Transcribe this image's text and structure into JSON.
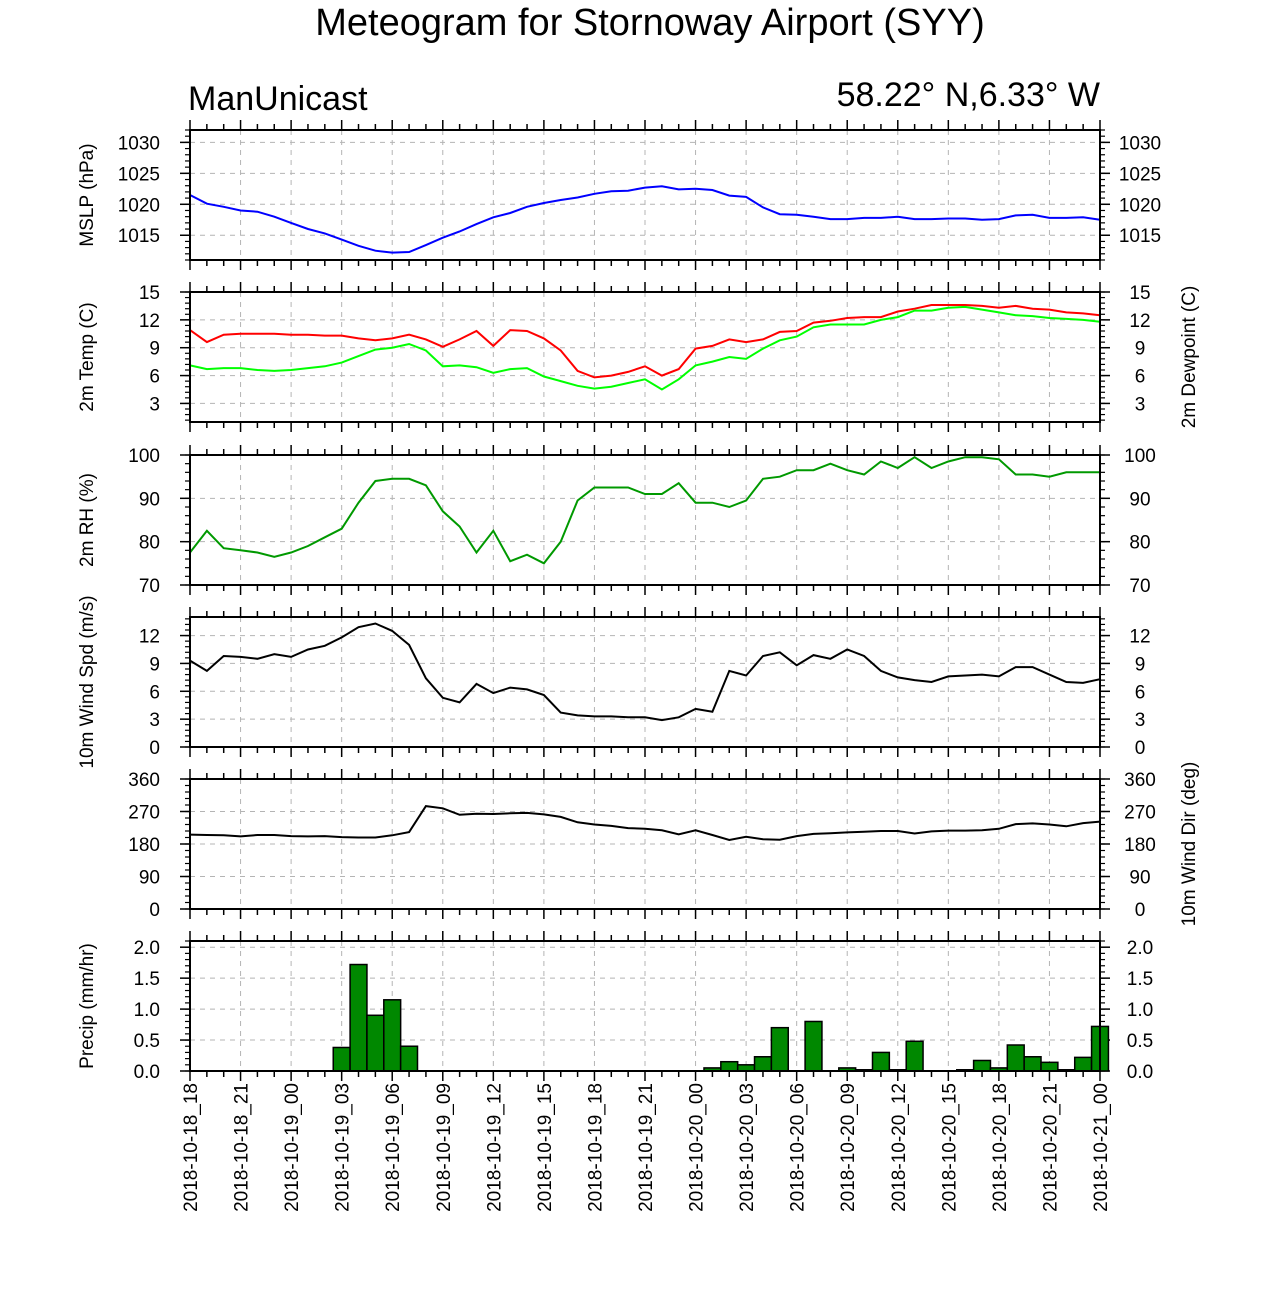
{
  "title": "Meteogram for Stornoway Airport (SYY)",
  "model": "ManUnicast",
  "location": "58.22° N,6.33° W",
  "colors": {
    "mslp": "#0000ff",
    "temp": "#ff0000",
    "dewpoint": "#00ff00",
    "rh": "#009900",
    "wind": "#000000",
    "precip": "#008800"
  },
  "time_labels": [
    "2018-10-18_18",
    "2018-10-18_21",
    "2018-10-19_00",
    "2018-10-19_03",
    "2018-10-19_06",
    "2018-10-19_09",
    "2018-10-19_12",
    "2018-10-19_15",
    "2018-10-19_18",
    "2018-10-19_21",
    "2018-10-20_00",
    "2018-10-20_03",
    "2018-10-20_06",
    "2018-10-20_09",
    "2018-10-20_12",
    "2018-10-20_15",
    "2018-10-20_18",
    "2018-10-20_21",
    "2018-10-21_00"
  ],
  "chart_data": [
    {
      "type": "line",
      "ylabel": "MSLP (hPa)",
      "yticks": [
        1015,
        1020,
        1025,
        1030
      ],
      "ylim": [
        1011,
        1032
      ],
      "grid": true,
      "series": [
        {
          "values": [
            1021.5,
            1020.1,
            1019.6,
            1019.0,
            1018.8,
            1018.0,
            1017.0,
            1016.0,
            1015.3,
            1014.3,
            1013.3,
            1012.5,
            1012.2,
            1012.3,
            1013.4,
            1014.6,
            1015.6,
            1016.8,
            1017.9,
            1018.6,
            1019.6,
            1020.2,
            1020.7,
            1021.1,
            1021.7,
            1022.1,
            1022.2,
            1022.7,
            1022.9,
            1022.4,
            1022.5,
            1022.3,
            1021.4,
            1021.2,
            1019.5,
            1018.4,
            1018.3,
            1018.0,
            1017.6,
            1017.6,
            1017.8,
            1017.8,
            1018.0,
            1017.6,
            1017.6,
            1017.7,
            1017.7,
            1017.5,
            1017.6,
            1018.2,
            1018.3,
            1017.8,
            1017.8,
            1017.9,
            1017.5
          ]
        }
      ]
    },
    {
      "type": "line",
      "ylabel": "2m Temp (C)",
      "y2label": "2m Dewpoint (C)",
      "yticks": [
        3,
        6,
        9,
        12,
        15
      ],
      "ylim": [
        1,
        15
      ],
      "grid": true,
      "series": [
        {
          "values": [
            10.9,
            9.6,
            10.4,
            10.5,
            10.5,
            10.5,
            10.4,
            10.4,
            10.3,
            10.3,
            10.0,
            9.8,
            10.0,
            10.4,
            9.9,
            9.1,
            9.9,
            10.8,
            9.2,
            10.9,
            10.8,
            10.0,
            8.7,
            6.5,
            5.8,
            6.0,
            6.4,
            7.0,
            6.0,
            6.7,
            8.9,
            9.2,
            9.9,
            9.6,
            9.9,
            10.7,
            10.8,
            11.7,
            11.9,
            12.2,
            12.3,
            12.3,
            12.9,
            13.2,
            13.6,
            13.6,
            13.6,
            13.5,
            13.3,
            13.5,
            13.2,
            13.1,
            12.8,
            12.7,
            12.5
          ]
        },
        {
          "values": [
            7.1,
            6.7,
            6.8,
            6.8,
            6.6,
            6.5,
            6.6,
            6.8,
            7.0,
            7.4,
            8.1,
            8.8,
            9.0,
            9.4,
            8.7,
            7.0,
            7.1,
            6.9,
            6.3,
            6.7,
            6.8,
            5.9,
            5.4,
            4.9,
            4.6,
            4.8,
            5.2,
            5.6,
            4.5,
            5.6,
            7.1,
            7.5,
            8.0,
            7.8,
            8.9,
            9.8,
            10.2,
            11.2,
            11.5,
            11.5,
            11.5,
            12.0,
            12.3,
            13.0,
            13.0,
            13.3,
            13.4,
            13.1,
            12.8,
            12.5,
            12.4,
            12.2,
            12.1,
            12.0,
            11.8
          ]
        }
      ]
    },
    {
      "type": "line",
      "ylabel": "2m RH (%)",
      "yticks": [
        70,
        80,
        90,
        100
      ],
      "ylim": [
        70,
        100
      ],
      "grid": true,
      "series": [
        {
          "values": [
            77.5,
            82.5,
            78.5,
            78.0,
            77.5,
            76.5,
            77.5,
            79.0,
            81.0,
            83.0,
            89.0,
            94.0,
            94.5,
            94.5,
            93.0,
            87.0,
            83.5,
            77.5,
            82.5,
            75.5,
            77.0,
            75.0,
            80.0,
            89.5,
            92.5,
            92.5,
            92.5,
            91.0,
            91.0,
            93.5,
            89.0,
            89.0,
            88.0,
            89.5,
            94.5,
            95.0,
            96.5,
            96.5,
            98.0,
            96.5,
            95.5,
            98.5,
            97.0,
            99.5,
            97.0,
            98.5,
            99.5,
            99.5,
            99.0,
            95.5,
            95.5,
            95.0,
            96.0,
            96.0,
            96.0
          ]
        }
      ]
    },
    {
      "type": "line",
      "ylabel": "10m Wind Spd (m/s)",
      "yticks": [
        0,
        3,
        6,
        9,
        12
      ],
      "ylim": [
        0,
        14
      ],
      "grid": true,
      "series": [
        {
          "values": [
            9.3,
            8.2,
            9.8,
            9.7,
            9.5,
            10.0,
            9.7,
            10.5,
            10.9,
            11.8,
            12.9,
            13.3,
            12.5,
            11.0,
            7.4,
            5.3,
            4.8,
            6.8,
            5.8,
            6.4,
            6.2,
            5.6,
            3.7,
            3.4,
            3.3,
            3.3,
            3.2,
            3.2,
            2.9,
            3.2,
            4.1,
            3.8,
            8.2,
            7.7,
            9.8,
            10.2,
            8.8,
            9.9,
            9.5,
            10.5,
            9.8,
            8.2,
            7.5,
            7.2,
            7.0,
            7.6,
            7.7,
            7.8,
            7.6,
            8.6,
            8.6,
            7.8,
            7.0,
            6.9,
            7.3
          ]
        }
      ]
    },
    {
      "type": "line",
      "ylabel": "",
      "y2label": "10m Wind Dir (deg)",
      "yticks": [
        0,
        90,
        180,
        270,
        360
      ],
      "ylim": [
        0,
        360
      ],
      "grid": true,
      "series": [
        {
          "values": [
            206,
            205,
            204,
            201,
            205,
            205,
            202,
            201,
            202,
            199,
            198,
            198,
            204,
            213,
            285,
            279,
            261,
            264,
            263,
            265,
            266,
            262,
            255,
            240,
            234,
            230,
            224,
            222,
            218,
            207,
            218,
            205,
            191,
            200,
            193,
            192,
            202,
            208,
            210,
            212,
            214,
            216,
            216,
            209,
            215,
            217,
            217,
            218,
            222,
            235,
            237,
            234,
            229,
            238,
            242
          ]
        }
      ]
    },
    {
      "type": "bar",
      "ylabel": "Precip (mm/hr)",
      "yticks": [
        0.0,
        0.5,
        1.0,
        1.5,
        2.0
      ],
      "ylim": [
        0,
        2.1
      ],
      "grid": true,
      "series": [
        {
          "values": [
            0,
            0,
            0,
            0,
            0,
            0,
            0,
            0,
            0,
            0.38,
            1.72,
            0.9,
            1.15,
            0.4,
            0,
            0,
            0,
            0,
            0,
            0,
            0,
            0,
            0,
            0,
            0,
            0,
            0,
            0,
            0,
            0,
            0,
            0.05,
            0.15,
            0.1,
            0.23,
            0.7,
            0,
            0.8,
            0,
            0.05,
            0.02,
            0.3,
            0.02,
            0.48,
            0,
            0,
            0.02,
            0.17,
            0.05,
            0.42,
            0.23,
            0.14,
            0.02,
            0.22,
            0.72
          ]
        }
      ]
    }
  ]
}
